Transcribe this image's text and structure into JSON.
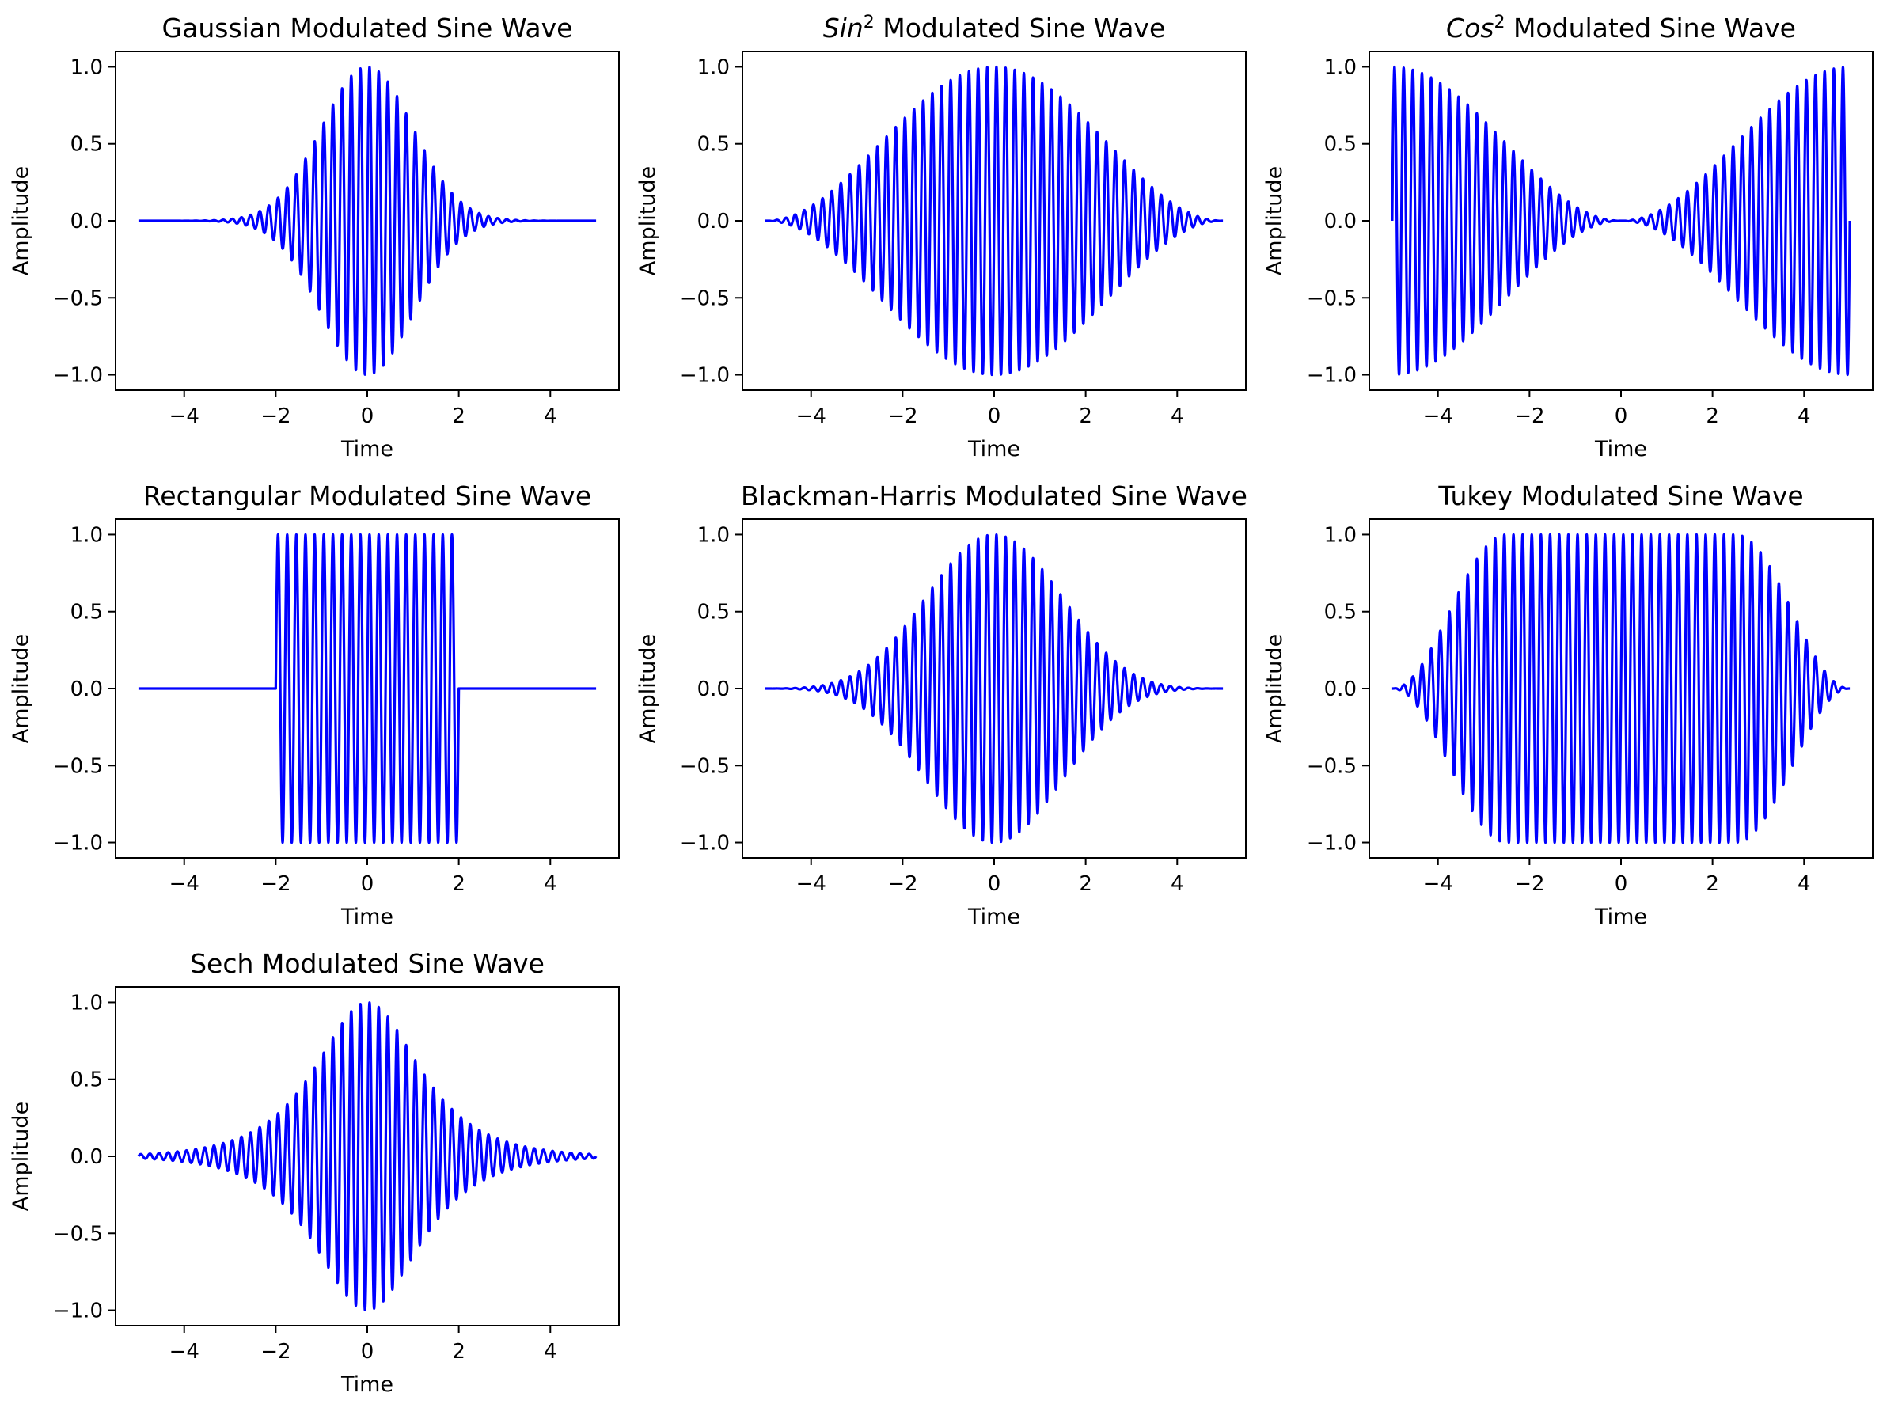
{
  "colors": {
    "line": "#0000ff",
    "axes": "#000000",
    "background": "#ffffff"
  },
  "chart_data": [
    {
      "type": "line",
      "title": "Gaussian Modulated Sine Wave",
      "xlabel": "Time",
      "ylabel": "Amplitude",
      "xlim": [
        -5.5,
        5.5
      ],
      "ylim": [
        -1.1,
        1.1
      ],
      "xticks": [
        "−4",
        "−2",
        "0",
        "2",
        "4"
      ],
      "yticks": [
        "−1.0",
        "−0.5",
        "0.0",
        "0.5",
        "1.0"
      ],
      "grid": false,
      "series": [
        {
          "envelope": "gaussian",
          "x_range": [
            -5,
            5
          ],
          "carrier_frequency": 5,
          "peak_amplitude": 1.0
        }
      ]
    },
    {
      "type": "line",
      "title": "Sin",
      "title_sup": "2",
      "title_rest": " Modulated Sine Wave",
      "xlabel": "Time",
      "ylabel": "Amplitude",
      "xlim": [
        -5.5,
        5.5
      ],
      "ylim": [
        -1.1,
        1.1
      ],
      "xticks": [
        "−4",
        "−2",
        "0",
        "2",
        "4"
      ],
      "yticks": [
        "−1.0",
        "−0.5",
        "0.0",
        "0.5",
        "1.0"
      ],
      "grid": false,
      "series": [
        {
          "envelope": "sin2",
          "x_range": [
            -5,
            5
          ],
          "carrier_frequency": 5,
          "peak_amplitude": 1.0
        }
      ]
    },
    {
      "type": "line",
      "title": "Cos",
      "title_sup": "2",
      "title_rest": " Modulated Sine Wave",
      "xlabel": "Time",
      "ylabel": "Amplitude",
      "xlim": [
        -5.5,
        5.5
      ],
      "ylim": [
        -1.1,
        1.1
      ],
      "xticks": [
        "−4",
        "−2",
        "0",
        "2",
        "4"
      ],
      "yticks": [
        "−1.0",
        "−0.5",
        "0.0",
        "0.5",
        "1.0"
      ],
      "grid": false,
      "series": [
        {
          "envelope": "cos2",
          "x_range": [
            -5,
            5
          ],
          "carrier_frequency": 5,
          "peak_amplitude": 1.0
        }
      ]
    },
    {
      "type": "line",
      "title": "Rectangular Modulated Sine Wave",
      "xlabel": "Time",
      "ylabel": "Amplitude",
      "xlim": [
        -5.5,
        5.5
      ],
      "ylim": [
        -1.1,
        1.1
      ],
      "xticks": [
        "−4",
        "−2",
        "0",
        "2",
        "4"
      ],
      "yticks": [
        "−1.0",
        "−0.5",
        "0.0",
        "0.5",
        "1.0"
      ],
      "grid": false,
      "series": [
        {
          "envelope": "rectangular",
          "x_range": [
            -5,
            5
          ],
          "window": [
            -2,
            2
          ],
          "carrier_frequency": 5,
          "peak_amplitude": 1.0
        }
      ]
    },
    {
      "type": "line",
      "title": "Blackman-Harris Modulated Sine Wave",
      "xlabel": "Time",
      "ylabel": "Amplitude",
      "xlim": [
        -5.5,
        5.5
      ],
      "ylim": [
        -1.1,
        1.1
      ],
      "xticks": [
        "−4",
        "−2",
        "0",
        "2",
        "4"
      ],
      "yticks": [
        "−1.0",
        "−0.5",
        "0.0",
        "0.5",
        "1.0"
      ],
      "grid": false,
      "series": [
        {
          "envelope": "blackman-harris",
          "x_range": [
            -5,
            5
          ],
          "carrier_frequency": 5,
          "peak_amplitude": 1.0
        }
      ]
    },
    {
      "type": "line",
      "title": "Tukey Modulated Sine Wave",
      "xlabel": "Time",
      "ylabel": "Amplitude",
      "xlim": [
        -5.5,
        5.5
      ],
      "ylim": [
        -1.1,
        1.1
      ],
      "xticks": [
        "−4",
        "−2",
        "0",
        "2",
        "4"
      ],
      "yticks": [
        "−1.0",
        "−0.5",
        "0.0",
        "0.5",
        "1.0"
      ],
      "grid": false,
      "series": [
        {
          "envelope": "tukey",
          "x_range": [
            -5,
            5
          ],
          "taper_fraction": 0.5,
          "carrier_frequency": 5,
          "peak_amplitude": 1.0
        }
      ]
    },
    {
      "type": "line",
      "title": "Sech Modulated Sine Wave",
      "xlabel": "Time",
      "ylabel": "Amplitude",
      "xlim": [
        -5.5,
        5.5
      ],
      "ylim": [
        -1.1,
        1.1
      ],
      "xticks": [
        "−4",
        "−2",
        "0",
        "2",
        "4"
      ],
      "yticks": [
        "−1.0",
        "−0.5",
        "0.0",
        "0.5",
        "1.0"
      ],
      "grid": false,
      "series": [
        {
          "envelope": "sech",
          "x_range": [
            -5,
            5
          ],
          "carrier_frequency": 5,
          "peak_amplitude": 1.0
        }
      ]
    }
  ]
}
